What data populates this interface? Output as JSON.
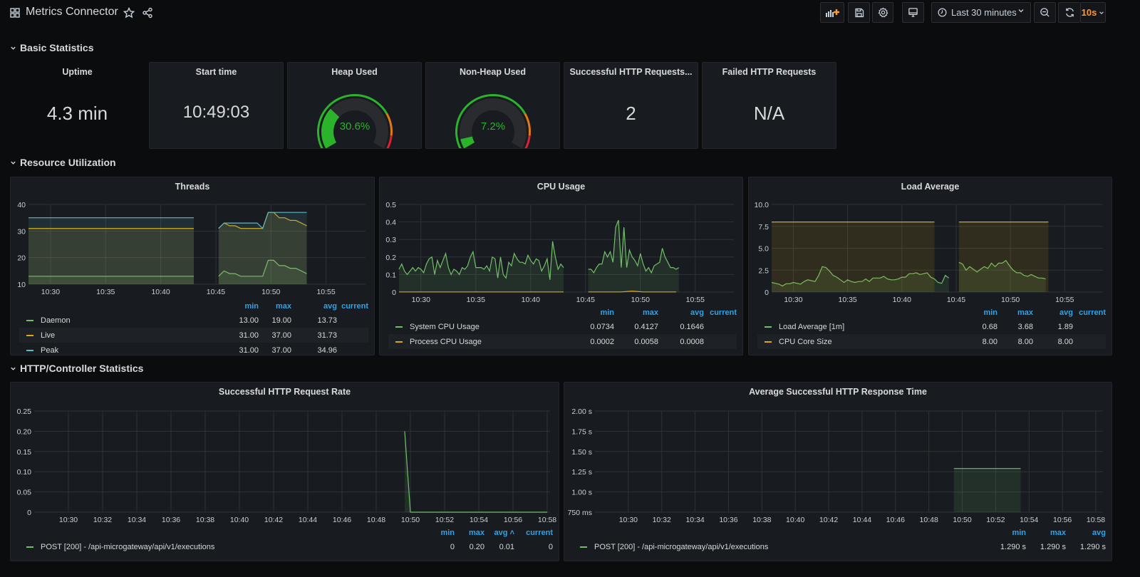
{
  "header": {
    "title": "Metrics Connector",
    "time_range": "Last 30 minutes",
    "refresh_interval": "10s",
    "icons": [
      "dashboard-grid-icon",
      "star-icon",
      "share-icon",
      "add-panel-icon",
      "save-icon",
      "settings-gear-icon",
      "tv-mode-icon",
      "clock-icon",
      "zoom-out-icon",
      "refresh-icon"
    ]
  },
  "rows": {
    "basic": "Basic Statistics",
    "resource": "Resource Utilization",
    "http": "HTTP/Controller Statistics"
  },
  "stats": {
    "uptime": {
      "title": "Uptime",
      "value": "4.3 min"
    },
    "start_time": {
      "title": "Start time",
      "value": "10:49:03"
    },
    "heap": {
      "title": "Heap Used",
      "value": "30.6%",
      "percent": 30.6,
      "thresholds": [
        75,
        90
      ]
    },
    "nonheap": {
      "title": "Non-Heap Used",
      "value": "7.2%",
      "percent": 7.2,
      "thresholds": [
        75,
        90
      ]
    },
    "success": {
      "title": "Successful HTTP Requests...",
      "value": "2"
    },
    "failed": {
      "title": "Failed HTTP Requests",
      "value": "N/A"
    }
  },
  "colors": {
    "green": "#73bf69",
    "yellow": "#d6a81a",
    "teal": "#5fb8c8",
    "gauge_green": "#2bb32b",
    "gauge_orange": "#e07b10",
    "gauge_red": "#e0202e",
    "legend_header": "#33a2e5",
    "refresh_orange": "#ff9830"
  },
  "chart_data": [
    {
      "id": "threads",
      "type": "line",
      "title": "Threads",
      "x_range": [
        "10:28",
        "10:58"
      ],
      "x_ticks": [
        "10:30",
        "10:35",
        "10:40",
        "10:45",
        "10:50",
        "10:55"
      ],
      "y_range": [
        10,
        40
      ],
      "y_ticks": [
        10,
        20,
        30,
        40
      ],
      "y_tick_labels": [
        "10",
        "20",
        "30",
        "40"
      ],
      "grid": true,
      "legend": "bottom",
      "legend_columns": [
        "min",
        "max",
        "avg",
        "current"
      ],
      "series": [
        {
          "name": "Daemon",
          "color": "#73bf69",
          "stats": [
            "13.00",
            "19.00",
            "13.73",
            ""
          ],
          "segments": [
            {
              "start": "10:28:00",
              "step_s": 900,
              "values": [
                13,
                13
              ]
            },
            {
              "start": "10:45:15",
              "step_s": 30,
              "values": [
                13,
                15,
                14,
                14,
                13,
                13,
                13,
                13,
                13,
                19,
                19,
                17,
                17,
                16,
                16,
                15,
                14
              ]
            }
          ]
        },
        {
          "name": "Live",
          "color": "#d6a81a",
          "stats": [
            "31.00",
            "37.00",
            "31.73",
            ""
          ],
          "segments": [
            {
              "start": "10:28:00",
              "step_s": 900,
              "values": [
                31,
                31
              ]
            },
            {
              "start": "10:45:15",
              "step_s": 30,
              "values": [
                31,
                33,
                32,
                32,
                31,
                31,
                31,
                31,
                31,
                37,
                37,
                35,
                35,
                34,
                34,
                33,
                32
              ]
            }
          ]
        },
        {
          "name": "Peak",
          "color": "#5fb8c8",
          "stats": [
            "31.00",
            "37.00",
            "34.96",
            ""
          ],
          "segments": [
            {
              "start": "10:28:00",
              "step_s": 900,
              "values": [
                35,
                35
              ]
            },
            {
              "start": "10:45:15",
              "step_s": 30,
              "values": [
                31,
                33,
                33,
                33,
                33,
                33,
                33,
                33,
                31,
                37,
                37,
                37,
                37,
                37,
                37,
                37,
                37
              ]
            }
          ]
        }
      ]
    },
    {
      "id": "cpu",
      "type": "line",
      "title": "CPU Usage",
      "x_range": [
        "10:28",
        "10:58"
      ],
      "x_ticks": [
        "10:30",
        "10:35",
        "10:40",
        "10:45",
        "10:50",
        "10:55"
      ],
      "y_range": [
        0,
        0.5
      ],
      "y_ticks": [
        0,
        0.1,
        0.2,
        0.3,
        0.4,
        0.5
      ],
      "y_tick_labels": [
        "0",
        "0.1",
        "0.2",
        "0.3",
        "0.4",
        "0.5"
      ],
      "grid": true,
      "legend": "bottom",
      "legend_columns": [
        "min",
        "max",
        "avg",
        "current"
      ],
      "series": [
        {
          "name": "System CPU Usage",
          "color": "#73bf69",
          "stats": [
            "0.0734",
            "0.4127",
            "0.1646",
            ""
          ],
          "segments": [
            {
              "start": "10:28:00",
              "step_s": 15,
              "values": [
                0.13,
                0.16,
                0.12,
                0.1,
                0.12,
                0.14,
                0.12,
                0.14,
                0.13,
                0.11,
                0.16,
                0.19,
                0.2,
                0.1,
                0.18,
                0.14,
                0.18,
                0.22,
                0.14,
                0.1,
                0.13,
                0.12,
                0.1,
                0.14,
                0.13,
                0.15,
                0.2,
                0.23,
                0.14,
                0.14,
                0.14,
                0.13,
                0.15,
                0.12,
                0.2,
                0.19,
                0.08,
                0.2,
                0.1,
                0.08,
                0.17,
                0.15,
                0.22,
                0.19,
                0.17,
                0.17,
                0.16,
                0.21,
                0.18,
                0.16,
                0.19,
                0.18,
                0.12,
                0.15,
                0.19,
                0.07,
                0.29,
                0.2,
                0.13,
                0.16,
                0.14
              ]
            },
            {
              "start": "10:45:15",
              "step_s": 15,
              "values": [
                0.13,
                0.13,
                0.11,
                0.14,
                0.16,
                0.16,
                0.23,
                0.2,
                0.23,
                0.17,
                0.37,
                0.41,
                0.14,
                0.37,
                0.14,
                0.24,
                0.2,
                0.18,
                0.15,
                0.22,
                0.16,
                0.12,
                0.14,
                0.11,
                0.15,
                0.16,
                0.17,
                0.25,
                0.2,
                0.17,
                0.14,
                0.14,
                0.13,
                0.14
              ]
            }
          ]
        },
        {
          "name": "Process CPU Usage",
          "color": "#d6a81a",
          "stats": [
            "0.0002",
            "0.0058",
            "0.0008",
            ""
          ],
          "segments": [
            {
              "start": "10:28:00",
              "step_s": 900,
              "values": [
                0.0008,
                0.0008
              ]
            },
            {
              "start": "10:45:15",
              "step_s": 60,
              "values": [
                0.0008,
                0.0008,
                0.0008,
                0.0008,
                0.0058,
                0.0008,
                0.0008,
                0.0008,
                0.0008
              ]
            }
          ]
        }
      ]
    },
    {
      "id": "load",
      "type": "line",
      "title": "Load Average",
      "x_range": [
        "10:28",
        "10:58"
      ],
      "x_ticks": [
        "10:30",
        "10:35",
        "10:40",
        "10:45",
        "10:50",
        "10:55"
      ],
      "y_range": [
        0,
        10
      ],
      "y_ticks": [
        0,
        2.5,
        5,
        7.5,
        10
      ],
      "y_tick_labels": [
        "0",
        "2.5",
        "5.0",
        "7.5",
        "10.0"
      ],
      "grid": true,
      "legend": "bottom",
      "legend_columns": [
        "min",
        "max",
        "avg",
        "current"
      ],
      "series": [
        {
          "name": "Load Average [1m]",
          "color": "#73bf69",
          "stats": [
            "0.68",
            "3.68",
            "1.89",
            ""
          ],
          "segments": [
            {
              "start": "10:28:00",
              "step_s": 20,
              "values": [
                1.1,
                1.0,
                0.9,
                0.7,
                0.95,
                0.95,
                1.1,
                1.0,
                0.9,
                1.2,
                1.4,
                1.3,
                1.2,
                1.9,
                2.9,
                2.8,
                2.4,
                1.9,
                1.7,
                1.4,
                1.1,
                1.4,
                1.2,
                1.1,
                1.2,
                1.2,
                1.5,
                1.2,
                1.6,
                1.6,
                1.6,
                1.8,
                1.5,
                1.4,
                1.4,
                1.5,
                1.7,
                1.7,
                2.1,
                2.1,
                2.2,
                2.0,
                2.1,
                2.2,
                1.7,
                1.5,
                1.1,
                1.0,
                1.9,
                1.6
              ]
            },
            {
              "start": "10:45:15",
              "step_s": 20,
              "values": [
                3.4,
                3.2,
                2.5,
                2.9,
                2.6,
                2.3,
                2.6,
                2.9,
                2.7,
                3.3,
                2.9,
                3.3,
                3.3,
                3.6,
                3.0,
                2.5,
                2.2,
                2.2,
                1.9,
                1.8,
                2.0,
                1.8,
                1.6,
                1.6,
                1.5
              ]
            }
          ]
        },
        {
          "name": "CPU Core Size",
          "color": "#d6a81a",
          "stats": [
            "8.00",
            "8.00",
            "8.00",
            ""
          ],
          "segments": [
            {
              "start": "10:28:00",
              "step_s": 900,
              "values": [
                8,
                8
              ]
            },
            {
              "start": "10:45:15",
              "step_s": 495,
              "values": [
                8,
                8
              ]
            }
          ]
        }
      ]
    },
    {
      "id": "rate",
      "type": "line",
      "title": "Successful HTTP Request Rate",
      "x_range": [
        "10:28",
        "10:58"
      ],
      "x_ticks": [
        "10:30",
        "10:32",
        "10:34",
        "10:36",
        "10:38",
        "10:40",
        "10:42",
        "10:44",
        "10:46",
        "10:48",
        "10:50",
        "10:52",
        "10:54",
        "10:56",
        "10:58"
      ],
      "y_range": [
        0,
        0.25
      ],
      "y_ticks": [
        0,
        0.05,
        0.1,
        0.15,
        0.2,
        0.25
      ],
      "y_tick_labels": [
        "0",
        "0.05",
        "0.10",
        "0.15",
        "0.20",
        "0.25"
      ],
      "grid": true,
      "legend": "bottom",
      "legend_columns": [
        "min",
        "max",
        "avg",
        "current"
      ],
      "sort_column": "avg",
      "series": [
        {
          "name": "POST [200] - /api-microgateway/api/v1/executions",
          "color": "#73bf69",
          "stats": [
            "0",
            "0.20",
            "0.01",
            "0"
          ],
          "points": [
            [
              "10:49:40",
              0.2
            ],
            [
              "10:50:00",
              0
            ],
            [
              "10:58:00",
              0
            ]
          ]
        }
      ]
    },
    {
      "id": "resp",
      "type": "line",
      "title": "Average Successful HTTP Response Time",
      "x_range": [
        "10:28",
        "10:58"
      ],
      "x_ticks": [
        "10:30",
        "10:32",
        "10:34",
        "10:36",
        "10:38",
        "10:40",
        "10:42",
        "10:44",
        "10:46",
        "10:48",
        "10:50",
        "10:52",
        "10:54",
        "10:56",
        "10:58"
      ],
      "y_range": [
        0.75,
        2.0
      ],
      "y_ticks": [
        0.75,
        1,
        1.25,
        1.5,
        1.75,
        2
      ],
      "y_tick_labels": [
        "750 ms",
        "1.00 s",
        "1.25 s",
        "1.50 s",
        "1.75 s",
        "2.00 s"
      ],
      "grid": true,
      "legend": "bottom",
      "legend_columns": [
        "min",
        "max",
        "avg"
      ],
      "series": [
        {
          "name": "POST [200] - /api-microgateway/api/v1/executions",
          "color": "#73bf69",
          "stats": [
            "1.290 s",
            "1.290 s",
            "1.290 s"
          ],
          "points": [
            [
              "10:49:30",
              1.29
            ],
            [
              "10:53:30",
              1.29
            ]
          ]
        }
      ]
    }
  ]
}
